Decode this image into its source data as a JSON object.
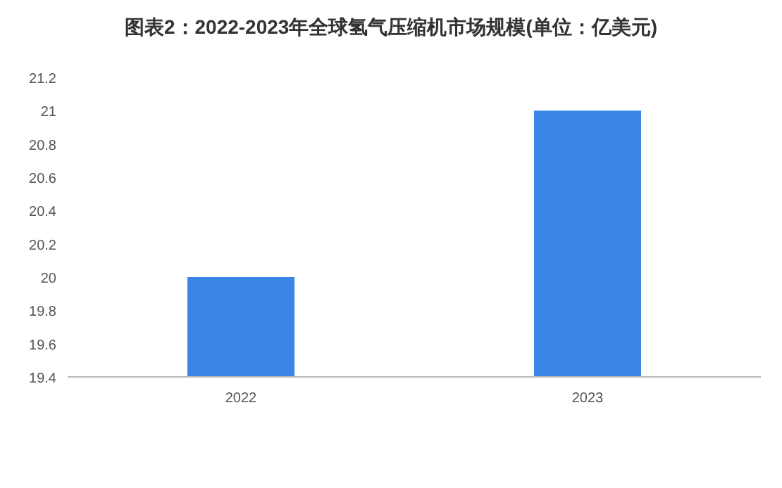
{
  "chart_data": {
    "type": "bar",
    "title": "图表2：2022-2023年全球氢气压缩机市场规模(单位：亿美元)",
    "categories": [
      "2022",
      "2023"
    ],
    "values": [
      20,
      21
    ],
    "color": "#3a86e6",
    "ylim": [
      19.4,
      21.2
    ],
    "yticks": [
      19.4,
      19.6,
      19.8,
      20,
      20.2,
      20.4,
      20.6,
      20.8,
      21,
      21.2
    ]
  }
}
